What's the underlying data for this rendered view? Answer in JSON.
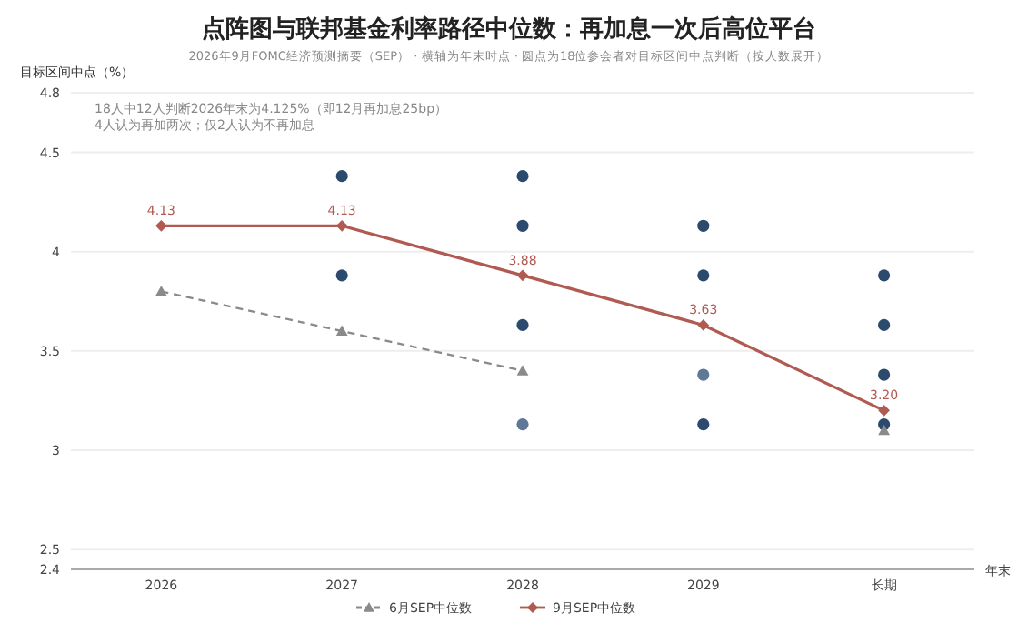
{
  "chart_data": {
    "type": "line",
    "title": "点阵图与联邦基金利率路径中位数：再加息一次后高位平台",
    "subtitle": "2026年9月FOMC经济预测摘要（SEP） · 横轴为年末时点 · 圆点为18位参会者对目标区间中点判断（按人数展开）",
    "ylabel": "目标区间中点（%）",
    "xlabel": "年末",
    "annotations": [
      "18人中12人判断2026年末为4.125%（即12月再加息25bp）",
      "4人认为再加两次；仅2人认为不再加息"
    ],
    "categories": [
      "2026",
      "2027",
      "2028",
      "2029",
      "长期"
    ],
    "ylim": [
      2.4,
      4.8
    ],
    "yticks": [
      2.4,
      2.5,
      3,
      3.5,
      4,
      4.5,
      4.8
    ],
    "grid": "y",
    "legend": "bottom",
    "series": [
      {
        "type": "scatter",
        "values": [
          null,
          4.38,
          4.38,
          4.13,
          3.88
        ],
        "colors": [
          null,
          "#2b4a6e",
          "#2b4a6e",
          "#2b4a6e",
          "#2b4a6e"
        ]
      },
      {
        "type": "scatter",
        "values": [
          null,
          3.88,
          4.13,
          3.88,
          3.63
        ],
        "colors": [
          null,
          "#2b4a6e",
          "#2b4a6e",
          "#2b4a6e",
          "#2b4a6e"
        ]
      },
      {
        "type": "scatter",
        "values": [
          null,
          null,
          3.63,
          3.38,
          3.38
        ],
        "colors": [
          null,
          null,
          "#2b4a6e",
          "#607898",
          "#2b4a6e"
        ]
      },
      {
        "type": "scatter",
        "values": [
          null,
          null,
          3.13,
          3.13,
          3.13
        ],
        "colors": [
          null,
          null,
          "#607898",
          "#2b4a6e",
          "#2b4a6e"
        ]
      },
      {
        "name": "6月SEP中位数",
        "color": "#8a8a8a",
        "marker": "triangle",
        "line_style": "dashed",
        "values": [
          3.8,
          3.6,
          3.4,
          null,
          3.1
        ]
      },
      {
        "name": "9月SEP中位数",
        "color": "#b05a52",
        "marker": "diamond",
        "line_style": "solid",
        "values": [
          4.13,
          4.13,
          3.88,
          3.63,
          3.2
        ],
        "value_labels": [
          "4.13",
          "4.13",
          "3.88",
          "3.63",
          "3.20"
        ]
      }
    ]
  }
}
